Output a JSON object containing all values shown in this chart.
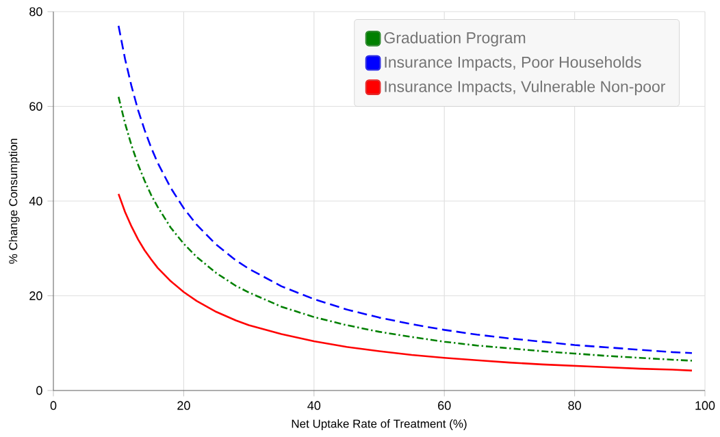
{
  "chart_data": {
    "type": "line",
    "xlabel": "Net Uptake Rate of Treatment (%)",
    "ylabel": "% Change Consumption",
    "xlim": [
      0,
      100
    ],
    "ylim": [
      0,
      80
    ],
    "xticks": [
      0,
      20,
      40,
      60,
      80,
      100
    ],
    "yticks": [
      0,
      20,
      40,
      60,
      80
    ],
    "grid": true,
    "legend": "top right",
    "marker": "none",
    "x": [
      10,
      11,
      12,
      13,
      14,
      15,
      16,
      18,
      20,
      22,
      25,
      28,
      30,
      35,
      40,
      45,
      50,
      55,
      60,
      65,
      70,
      75,
      80,
      85,
      90,
      95,
      98
    ],
    "series": [
      {
        "name": "Graduation Program",
        "color": "#008000",
        "line_style": "dashdot",
        "values": [
          62,
          56.4,
          51.7,
          47.7,
          44.3,
          41.3,
          38.8,
          34.4,
          31,
          28.2,
          24.8,
          22.1,
          20.7,
          17.7,
          15.5,
          13.8,
          12.4,
          11.3,
          10.3,
          9.5,
          8.9,
          8.3,
          7.8,
          7.3,
          6.9,
          6.5,
          6.3
        ]
      },
      {
        "name": "Insurance Impacts, Poor Households",
        "color": "#0000ff",
        "line_style": "dashed",
        "values": [
          77,
          70,
          64.2,
          59.2,
          55,
          51.3,
          48.1,
          42.8,
          38.5,
          35,
          30.8,
          27.5,
          25.7,
          22,
          19.3,
          17.1,
          15.4,
          14,
          12.8,
          11.8,
          11,
          10.3,
          9.6,
          9.1,
          8.6,
          8.1,
          7.9
        ]
      },
      {
        "name": "Insurance Impacts, Vulnerable Non-poor",
        "color": "#ff0000",
        "line_style": "solid",
        "values": [
          41.5,
          37.7,
          34.6,
          31.9,
          29.6,
          27.7,
          25.9,
          23.1,
          20.8,
          18.9,
          16.6,
          14.8,
          13.8,
          11.9,
          10.4,
          9.2,
          8.3,
          7.5,
          6.9,
          6.4,
          5.9,
          5.5,
          5.2,
          4.9,
          4.6,
          4.4,
          4.2
        ]
      }
    ]
  }
}
